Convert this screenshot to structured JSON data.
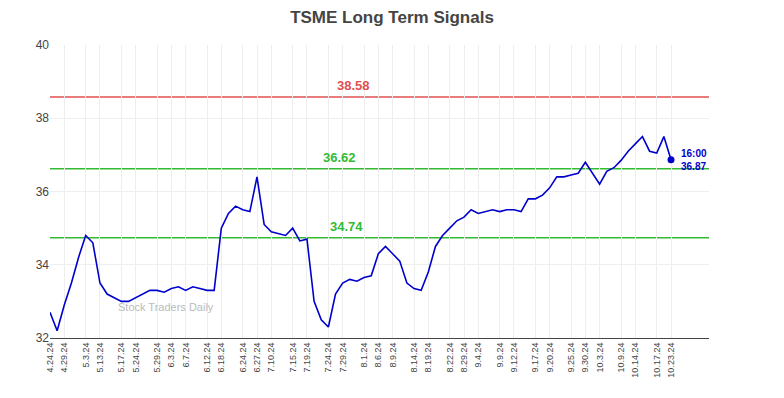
{
  "chart_data": {
    "type": "line",
    "title": "TSME Long Term Signals",
    "categories": [
      "4.24.24",
      null,
      "4.29.24",
      null,
      null,
      "5.3.24",
      null,
      "5.13.24",
      null,
      null,
      "5.17.24",
      null,
      "5.24.24",
      null,
      null,
      "5.29.24",
      null,
      "6.3.24",
      null,
      "6.7.24",
      null,
      null,
      "6.12.24",
      null,
      "6.18.24",
      null,
      null,
      "6.24.24",
      null,
      "6.27.24",
      null,
      "7.10.24",
      null,
      null,
      "7.15.24",
      null,
      "7.19.24",
      null,
      null,
      "7.24.24",
      null,
      "7.29.24",
      null,
      null,
      "8.1.24",
      null,
      "8.6.24",
      null,
      "8.9.24",
      null,
      null,
      "8.14.24",
      null,
      "8.19.24",
      null,
      null,
      "8.22.24",
      null,
      "8.29.24",
      null,
      "9.4.24",
      null,
      null,
      "9.9.24",
      null,
      "9.12.24",
      null,
      null,
      "9.17.24",
      null,
      "9.20.24",
      null,
      null,
      "9.25.24",
      null,
      "9.30.24",
      null,
      "10.3.24",
      null,
      null,
      "10.9.24",
      null,
      "10.14.24",
      null,
      null,
      "10.17.24",
      null,
      "10.23.24"
    ],
    "values": [
      32.7,
      32.2,
      32.9,
      33.5,
      34.2,
      34.8,
      34.6,
      33.5,
      33.2,
      33.1,
      33.0,
      33.0,
      33.1,
      33.2,
      33.3,
      33.3,
      33.25,
      33.35,
      33.4,
      33.3,
      33.4,
      33.35,
      33.3,
      33.3,
      35.0,
      35.4,
      35.6,
      35.5,
      35.45,
      36.4,
      35.1,
      34.9,
      34.85,
      34.8,
      35.0,
      34.65,
      34.7,
      33.0,
      32.5,
      32.3,
      33.2,
      33.5,
      33.6,
      33.55,
      33.65,
      33.7,
      34.3,
      34.5,
      34.3,
      34.1,
      33.5,
      33.35,
      33.3,
      33.8,
      34.5,
      34.8,
      35.0,
      35.2,
      35.3,
      35.5,
      35.4,
      35.45,
      35.5,
      35.45,
      35.5,
      35.5,
      35.45,
      35.8,
      35.8,
      35.9,
      36.1,
      36.4,
      36.4,
      36.45,
      36.5,
      36.8,
      36.5,
      36.2,
      36.55,
      36.65,
      36.85,
      37.1,
      37.3,
      37.5,
      37.1,
      37.05,
      37.5,
      36.87
    ],
    "color": "#0000cc",
    "hlines": [
      {
        "value": 38.58,
        "color": "#e05050"
      },
      {
        "value": 36.62,
        "color": "#33bb33"
      },
      {
        "value": 34.74,
        "color": "#33bb33"
      }
    ],
    "annotations": [
      {
        "text": "16:00\n36.87"
      },
      {
        "text": "Stock Traders Daily"
      }
    ],
    "ylim": [
      32,
      40
    ],
    "yticks": [
      32,
      34,
      36,
      38,
      40
    ],
    "grid": true
  }
}
